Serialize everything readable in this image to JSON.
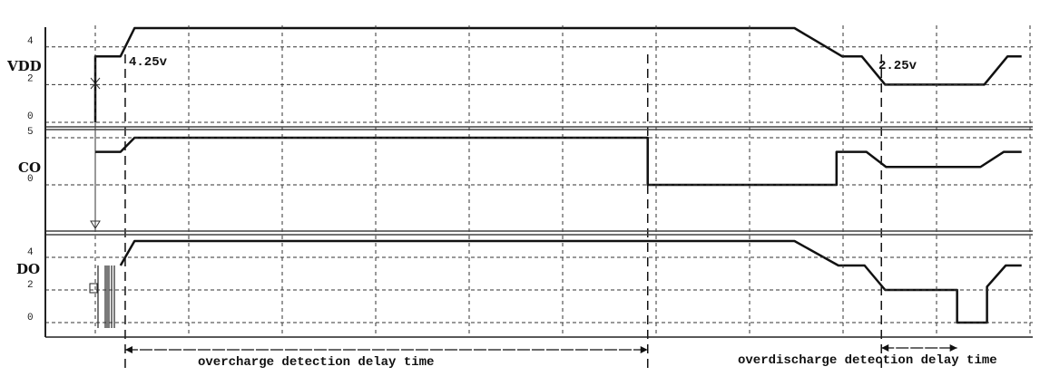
{
  "chart_data": {
    "type": "line",
    "title": "",
    "xlabel": "",
    "grid": true,
    "x_divisions": 10,
    "panels": [
      {
        "name": "VDD",
        "ymin": 0,
        "ymax": 5,
        "ticks": [
          "4",
          "2",
          "0"
        ],
        "tick_values": [
          4,
          2,
          0
        ],
        "points": [
          [
            0,
            0
          ],
          [
            0,
            3.5
          ],
          [
            0.27,
            3.5
          ],
          [
            0.42,
            5
          ],
          [
            7.48,
            5
          ],
          [
            7.99,
            3.5
          ],
          [
            8.2,
            3.5
          ],
          [
            8.45,
            2
          ],
          [
            9.51,
            2
          ],
          [
            9.76,
            3.5
          ],
          [
            9.91,
            3.5
          ]
        ]
      },
      {
        "name": "CO",
        "ymin": 0,
        "ymax": 5,
        "ticks": [
          "5",
          "0"
        ],
        "tick_values": [
          5,
          0
        ],
        "points": [
          [
            0,
            3.5
          ],
          [
            0.27,
            3.5
          ],
          [
            0.42,
            5
          ],
          [
            5.91,
            5
          ],
          [
            5.91,
            0
          ],
          [
            7.93,
            0
          ],
          [
            7.93,
            3.5
          ],
          [
            8.25,
            3.5
          ],
          [
            8.46,
            1.9
          ],
          [
            9.47,
            1.9
          ],
          [
            9.72,
            3.5
          ],
          [
            9.91,
            3.5
          ]
        ]
      },
      {
        "name": "DO",
        "ymin": 0,
        "ymax": 5,
        "ticks": [
          "4",
          "2",
          "0"
        ],
        "tick_values": [
          4,
          2,
          0
        ],
        "points": [
          [
            0.27,
            3.5
          ],
          [
            0.42,
            5
          ],
          [
            7.48,
            5
          ],
          [
            7.95,
            3.5
          ],
          [
            8.23,
            3.5
          ],
          [
            8.45,
            2
          ],
          [
            9.22,
            2
          ],
          [
            9.22,
            0
          ],
          [
            9.54,
            0
          ],
          [
            9.54,
            2.2
          ],
          [
            9.74,
            3.5
          ],
          [
            9.91,
            3.5
          ]
        ]
      }
    ],
    "annotations": {
      "vdd_high_threshold": "4.25v",
      "vdd_low_threshold": "2.25v",
      "overcharge_delay": "overcharge detection delay time",
      "overdischarge_delay": "overdischarge detection delay time"
    },
    "markers": {
      "overcharge_start": 0.32,
      "overcharge_end": 5.91,
      "overdischarge_start": 8.41,
      "overdischarge_end": 9.22
    }
  }
}
